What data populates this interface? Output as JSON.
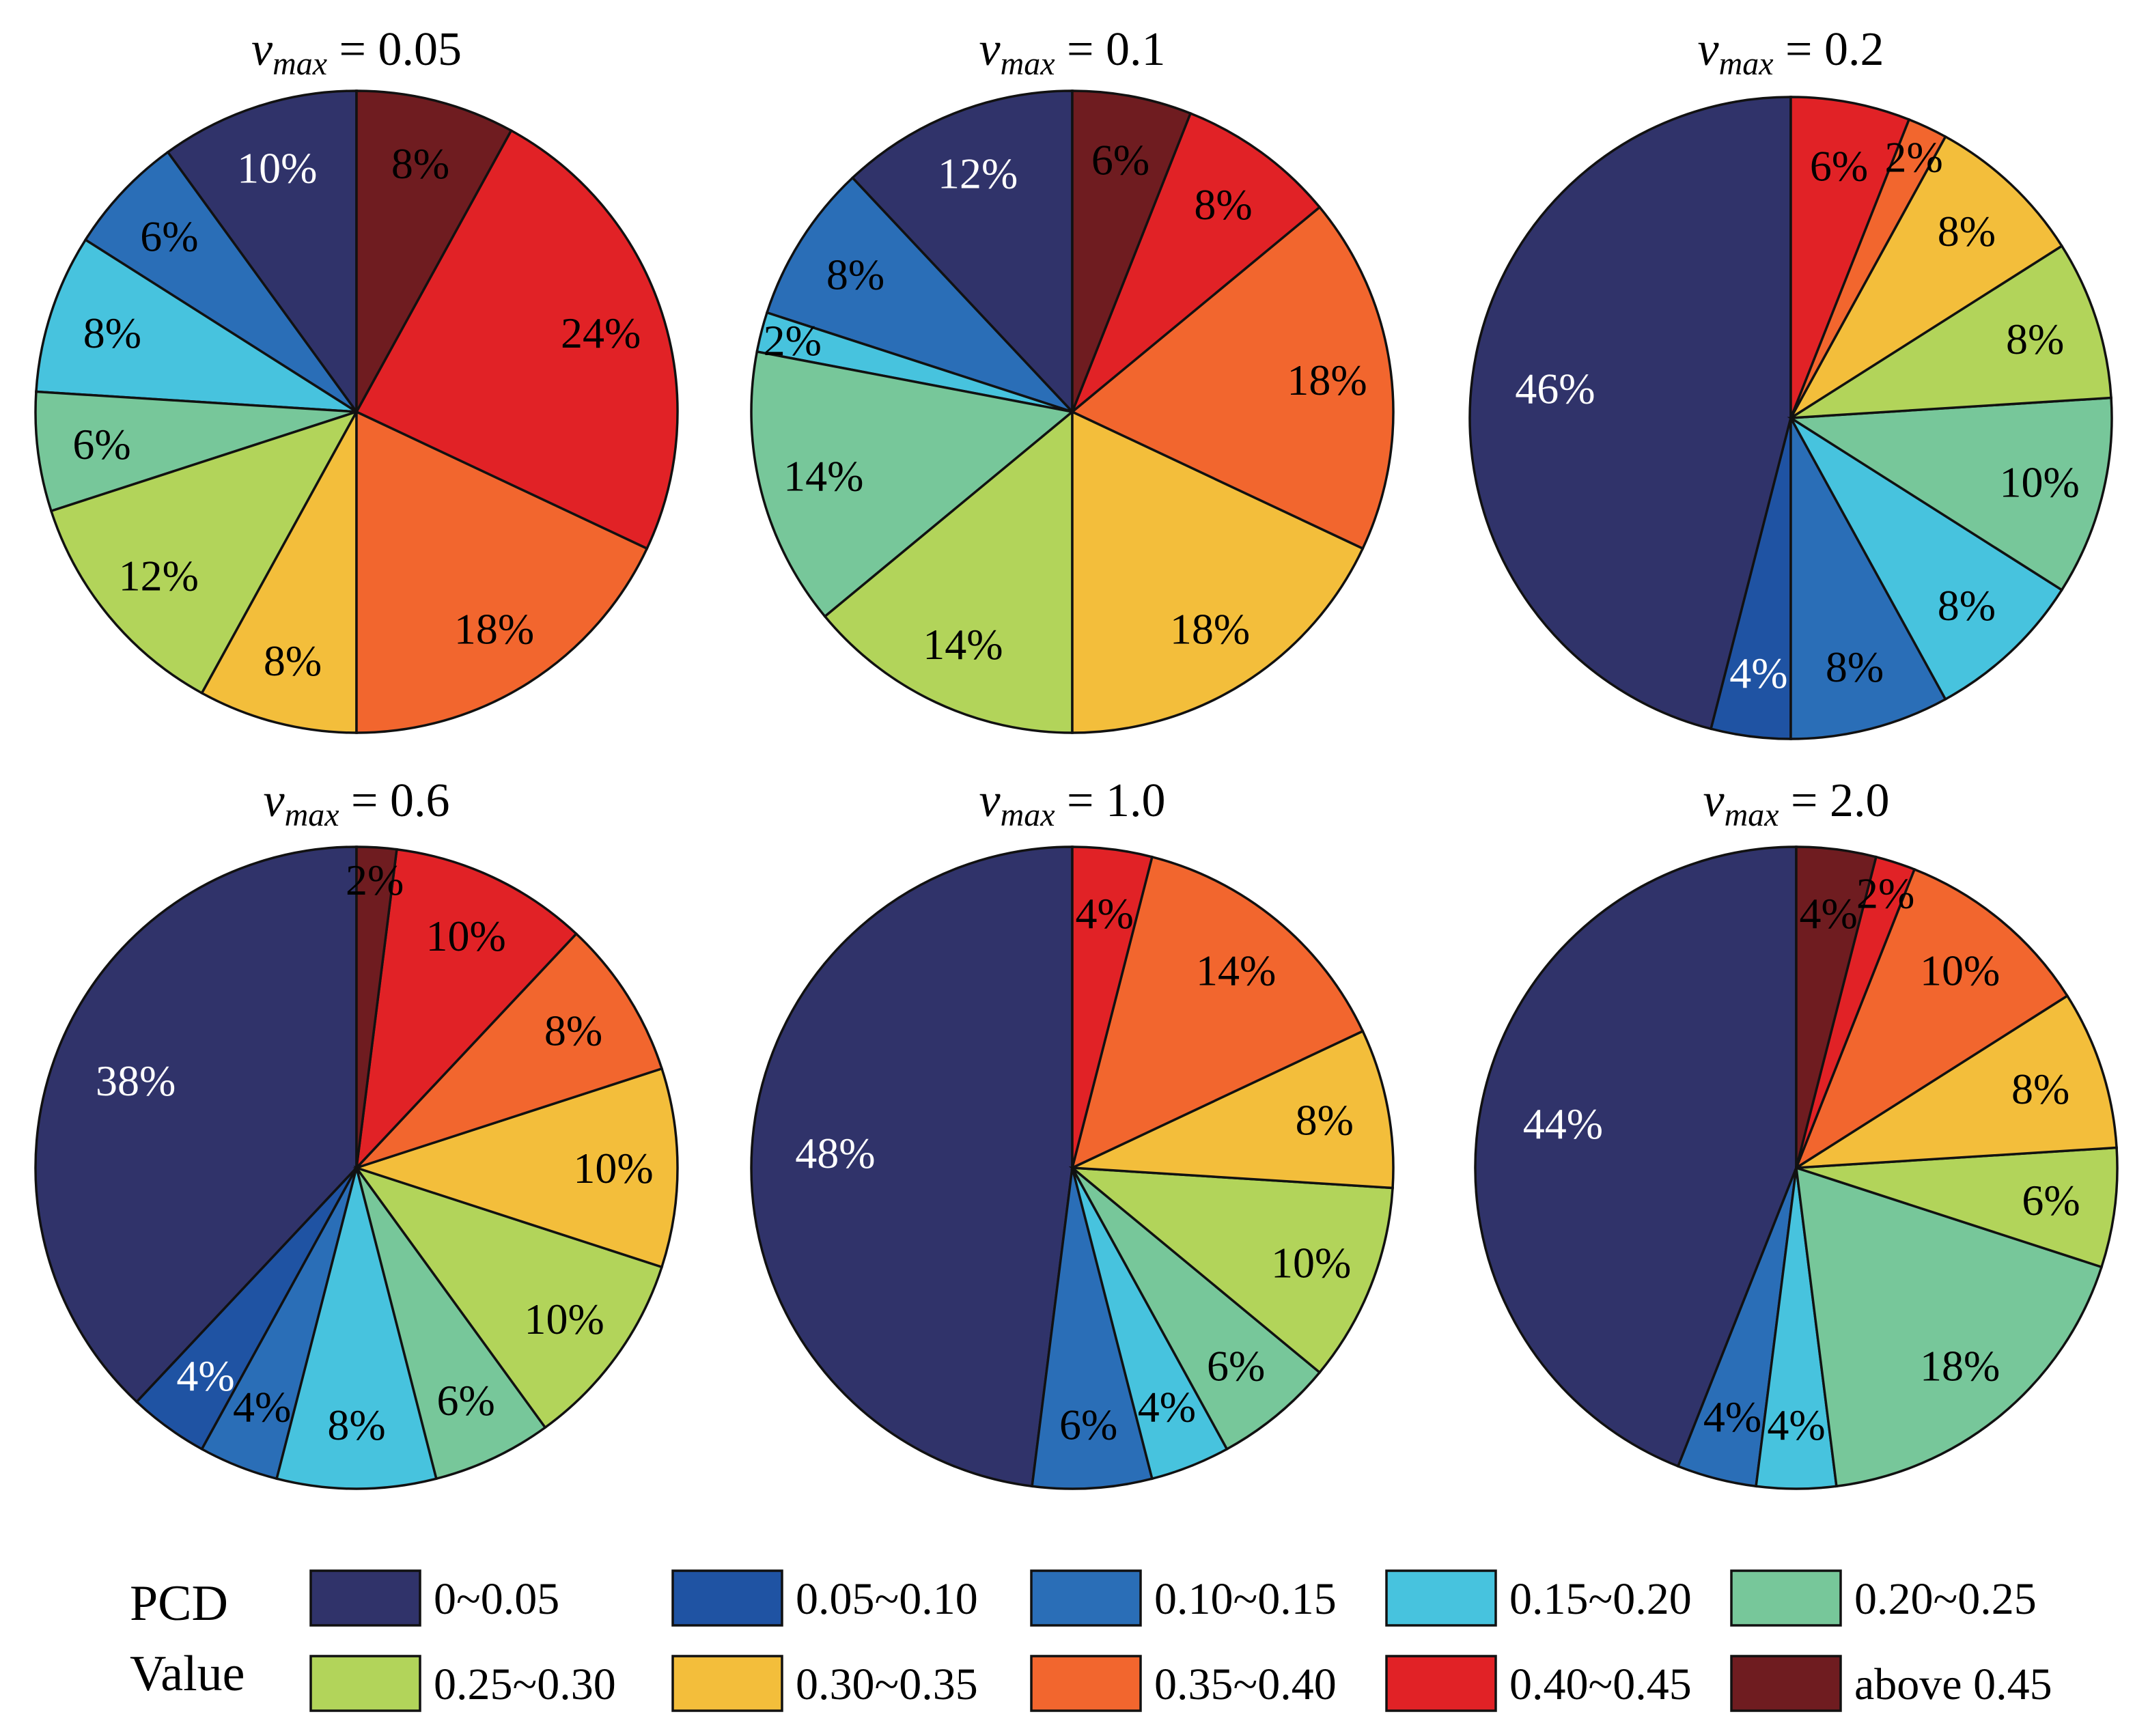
{
  "categories": [
    "0~0.05",
    "0.05~0.10",
    "0.10~0.15",
    "0.15~0.20",
    "0.20~0.25",
    "0.25~0.30",
    "0.30~0.35",
    "0.35~0.40",
    "0.40~0.45",
    "above 0.45"
  ],
  "colors": [
    "#30336a",
    "#1f53a3",
    "#2a6eb7",
    "#47c3de",
    "#77c79a",
    "#b2d45a",
    "#f3be3b",
    "#f2662e",
    "#e12226",
    "#6f1c20"
  ],
  "label_colors": [
    "#ffffff",
    "#ffffff",
    "#000000",
    "#000000",
    "#000000",
    "#000000",
    "#000000",
    "#000000",
    "#000000",
    "#000000"
  ],
  "legend": {
    "title_line1": "PCD",
    "title_line2": "Value"
  },
  "chart_data": [
    {
      "type": "pie",
      "title_var": "v",
      "title_sub": "max",
      "title_rest": " = 0.05",
      "labels": [
        "10%",
        "6%",
        "8%",
        "6%",
        "12%",
        "8%",
        "18%",
        "24%",
        "8%"
      ],
      "categories": [
        "0~0.05",
        "0.10~0.15",
        "0.15~0.20",
        "0.20~0.25",
        "0.25~0.30",
        "0.30~0.35",
        "0.35~0.40",
        "0.40~0.45",
        "above 0.45"
      ],
      "values": [
        10,
        6,
        8,
        6,
        12,
        8,
        18,
        24,
        8
      ]
    },
    {
      "type": "pie",
      "title_var": "v",
      "title_sub": "max",
      "title_rest": " = 0.1",
      "labels": [
        "12%",
        "8%",
        "2%",
        "14%",
        "14%",
        "18%",
        "18%",
        "8%",
        "6%"
      ],
      "categories": [
        "0~0.05",
        "0.10~0.15",
        "0.15~0.20",
        "0.20~0.25",
        "0.25~0.30",
        "0.30~0.35",
        "0.35~0.40",
        "0.40~0.45",
        "above 0.45"
      ],
      "values": [
        12,
        8,
        2,
        14,
        14,
        18,
        18,
        8,
        6
      ]
    },
    {
      "type": "pie",
      "title_var": "v",
      "title_sub": "max",
      "title_rest": " = 0.2",
      "labels": [
        "46%",
        "4%",
        "8%",
        "8%",
        "10%",
        "8%",
        "8%",
        "2%",
        "6%"
      ],
      "categories": [
        "0~0.05",
        "0.05~0.10",
        "0.10~0.15",
        "0.15~0.20",
        "0.20~0.25",
        "0.25~0.30",
        "0.30~0.35",
        "0.35~0.40",
        "0.40~0.45"
      ],
      "values": [
        46,
        4,
        8,
        8,
        10,
        8,
        8,
        2,
        6
      ]
    },
    {
      "type": "pie",
      "title_var": "v",
      "title_sub": "max",
      "title_rest": " = 0.6",
      "labels": [
        "38%",
        "4%",
        "4%",
        "8%",
        "6%",
        "10%",
        "10%",
        "8%",
        "10%",
        "2%"
      ],
      "categories": [
        "0~0.05",
        "0.05~0.10",
        "0.10~0.15",
        "0.15~0.20",
        "0.20~0.25",
        "0.25~0.30",
        "0.30~0.35",
        "0.35~0.40",
        "0.40~0.45",
        "above 0.45"
      ],
      "values": [
        38,
        4,
        4,
        8,
        6,
        10,
        10,
        8,
        10,
        2
      ]
    },
    {
      "type": "pie",
      "title_var": "v",
      "title_sub": "max",
      "title_rest": " = 1.0",
      "labels": [
        "48%",
        "6%",
        "4%",
        "6%",
        "10%",
        "8%",
        "14%",
        "4%"
      ],
      "categories": [
        "0~0.05",
        "0.10~0.15",
        "0.15~0.20",
        "0.20~0.25",
        "0.25~0.30",
        "0.30~0.35",
        "0.35~0.40",
        "0.40~0.45"
      ],
      "values": [
        48,
        6,
        4,
        6,
        10,
        8,
        14,
        4
      ]
    },
    {
      "type": "pie",
      "title_var": "v",
      "title_sub": "max",
      "title_rest": " = 2.0",
      "labels": [
        "44%",
        "4%",
        "4%",
        "18%",
        "6%",
        "8%",
        "10%",
        "2%",
        "4%"
      ],
      "categories": [
        "0~0.05",
        "0.10~0.15",
        "0.15~0.20",
        "0.20~0.25",
        "0.25~0.30",
        "0.30~0.35",
        "0.35~0.40",
        "0.40~0.45",
        "above 0.45"
      ],
      "values": [
        44,
        4,
        4,
        18,
        6,
        8,
        10,
        2,
        4
      ]
    }
  ]
}
